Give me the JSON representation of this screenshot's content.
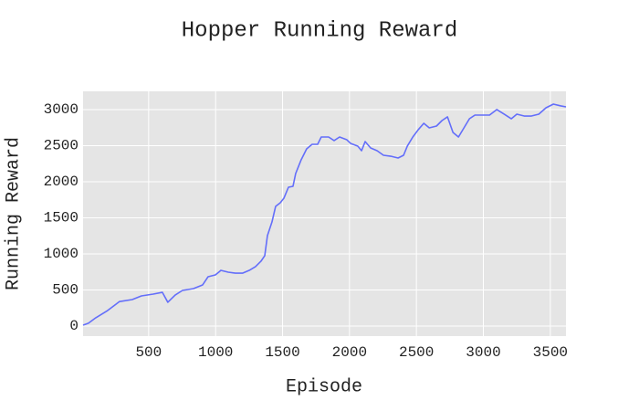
{
  "chart_data": {
    "type": "line",
    "title": "Hopper Running Reward",
    "x_label": "Episode",
    "y_label": "Running Reward",
    "x": [
      10,
      50,
      104,
      193,
      282,
      377,
      446,
      534,
      602,
      643,
      698,
      752,
      834,
      903,
      944,
      998,
      1032,
      1039,
      1094,
      1148,
      1203,
      1251,
      1298,
      1339,
      1367,
      1387,
      1421,
      1448,
      1483,
      1510,
      1544,
      1578,
      1598,
      1639,
      1680,
      1721,
      1762,
      1789,
      1844,
      1885,
      1926,
      1980,
      2008,
      2062,
      2090,
      2117,
      2158,
      2206,
      2254,
      2308,
      2363,
      2404,
      2432,
      2473,
      2514,
      2555,
      2596,
      2650,
      2691,
      2732,
      2773,
      2814,
      2855,
      2896,
      2937,
      2991,
      3046,
      3100,
      3155,
      3209,
      3250,
      3305,
      3359,
      3414,
      3468,
      3523,
      3578,
      3617
    ],
    "series": [
      {
        "name": "Running Reward",
        "color": "#636efa",
        "values": [
          13,
          40,
          114,
          215,
          340,
          367,
          418,
          443,
          468,
          330,
          430,
          494,
          519,
          570,
          684,
          709,
          760,
          772,
          747,
          734,
          734,
          772,
          823,
          899,
          975,
          1253,
          1443,
          1658,
          1709,
          1772,
          1924,
          1937,
          2114,
          2304,
          2456,
          2519,
          2519,
          2620,
          2620,
          2570,
          2620,
          2582,
          2532,
          2494,
          2430,
          2557,
          2468,
          2430,
          2367,
          2354,
          2329,
          2367,
          2494,
          2620,
          2722,
          2810,
          2747,
          2772,
          2848,
          2899,
          2684,
          2620,
          2747,
          2873,
          2924,
          2924,
          2924,
          3000,
          2937,
          2873,
          2937,
          2911,
          2911,
          2937,
          3025,
          3076,
          3051,
          3038
        ]
      }
    ],
    "xlim": [
      10,
      3617
    ],
    "ylim": [
      -139,
      3253
    ],
    "xticks": [
      500,
      1000,
      1500,
      2000,
      2500,
      3000,
      3500
    ],
    "yticks": [
      0,
      500,
      1000,
      1500,
      2000,
      2500,
      3000
    ],
    "grid": true
  }
}
